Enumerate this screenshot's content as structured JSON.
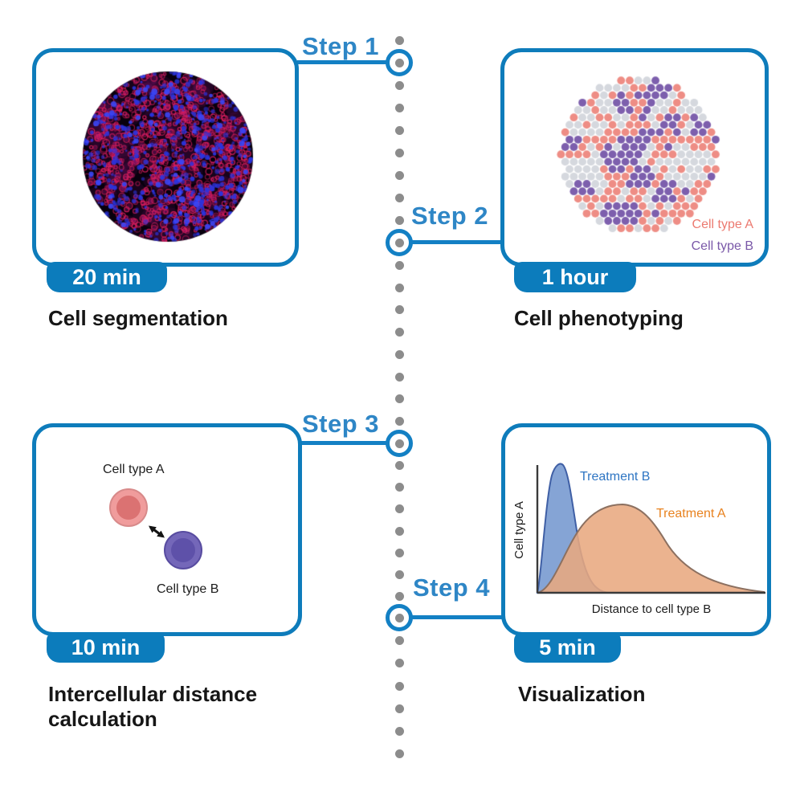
{
  "steps": [
    {
      "label": "Step 1",
      "duration": "20 min",
      "title": "Cell segmentation"
    },
    {
      "label": "Step 2",
      "duration": "1 hour",
      "title": "Cell phenotyping"
    },
    {
      "label": "Step 3",
      "duration": "10 min",
      "title": "Intercellular distance calculation"
    },
    {
      "label": "Step 4",
      "duration": "5 min",
      "title": "Visualization"
    }
  ],
  "colors": {
    "accent_blue": "#0e7cbb",
    "line_blue": "#1380c4",
    "step_text_blue": "#2e86c6",
    "timeline_dot_gray": "#8c8c8c"
  },
  "segmentation": {
    "background": "#08000d",
    "membrane_color": "#de1e5f",
    "nuclei_color": "#2a34e0",
    "haze_color": "#8a1878"
  },
  "phenotyping": {
    "legend": [
      {
        "label": "Cell type A",
        "color": "#ec7a70"
      },
      {
        "label": "Cell type B",
        "color": "#7a58a8"
      }
    ],
    "dot_colors": {
      "cell_type_a": "#ee8d85",
      "cell_type_b": "#7d5fad",
      "other": "#d5d8de"
    }
  },
  "distance": {
    "cell_a_label": "Cell type A",
    "cell_b_label": "Cell type B",
    "cell_a_colors": {
      "outer": "#f09c9c",
      "border": "#d88a8a",
      "nucleus": "#db7272"
    },
    "cell_b_colors": {
      "outer": "#7467b9",
      "border": "#584ca0",
      "nucleus": "#5e51a9"
    }
  },
  "chart_data": {
    "type": "area",
    "title": "",
    "xlabel": "Distance to cell type B",
    "ylabel": "Cell type A",
    "grid": false,
    "legend_position": "inline-annotations",
    "axes_numeric": false,
    "series": [
      {
        "name": "Treatment B",
        "fill": "#7b9cd1",
        "stroke": "#3f5fa5",
        "label_color": "#2e75c3",
        "x": [
          0.0,
          0.03,
          0.06,
          0.09,
          0.12,
          0.17,
          0.24,
          0.31
        ],
        "y": [
          0.0,
          0.55,
          0.97,
          1.0,
          0.8,
          0.38,
          0.08,
          0.0
        ]
      },
      {
        "name": "Treatment A",
        "fill": "#e8a87f",
        "stroke": "#8c7060",
        "label_color": "#e8821f",
        "x": [
          0.0,
          0.1,
          0.2,
          0.3,
          0.37,
          0.45,
          0.55,
          0.7,
          0.85,
          1.0
        ],
        "y": [
          0.0,
          0.18,
          0.52,
          0.68,
          0.69,
          0.6,
          0.41,
          0.18,
          0.07,
          0.01
        ]
      }
    ]
  }
}
